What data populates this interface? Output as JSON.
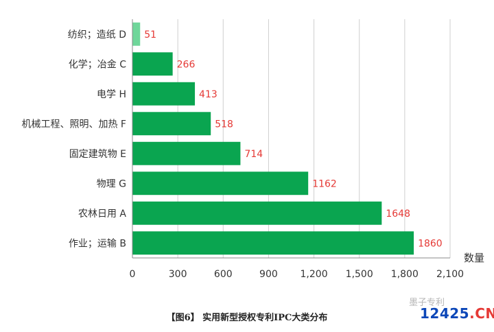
{
  "chart_data": {
    "type": "bar",
    "orientation": "horizontal",
    "categories": [
      "纺织；造纸 D",
      "化学；冶金 C",
      "电学 H",
      "机械工程、照明、加热 F",
      "固定建筑物 E",
      "物理 G",
      "农林日用 A",
      "作业；运输 B"
    ],
    "values": [
      51,
      266,
      413,
      518,
      714,
      1162,
      1648,
      1860
    ],
    "xlabel": "数量",
    "xlim": [
      0,
      2100
    ],
    "xticks": [
      0,
      300,
      600,
      900,
      1200,
      1500,
      1800,
      2100
    ],
    "xtick_labels": [
      "0",
      "300",
      "600",
      "900",
      "1,200",
      "1,500",
      "1,800",
      "2,100"
    ],
    "grid": "vertical",
    "bar_colors": [
      "#6fd69a",
      "#0aa550",
      "#0aa550",
      "#0aa550",
      "#0aa550",
      "#0aa550",
      "#0aa550",
      "#0aa550"
    ],
    "value_label_color": "#e53935"
  },
  "caption": "【图6】 实用新型授权专利IPC大类分布",
  "watermark": {
    "top_text": "墨子专利",
    "main": "12425",
    "suffix": ".CN"
  }
}
